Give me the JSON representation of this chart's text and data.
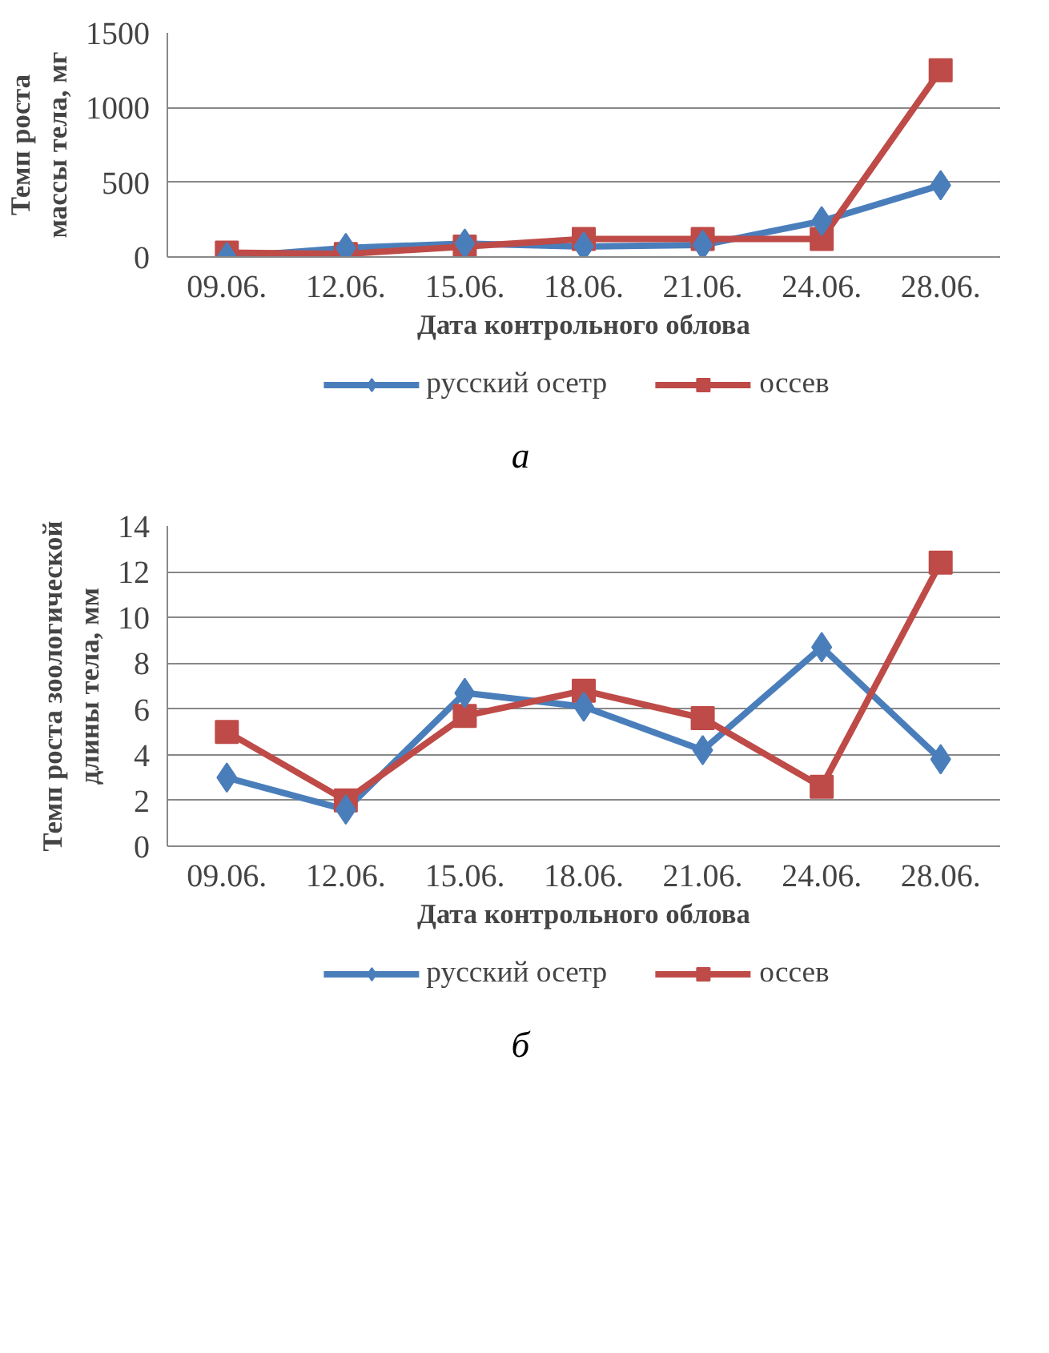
{
  "chart_data": [
    {
      "type": "line",
      "categories": [
        "09.06.",
        "12.06.",
        "15.06.",
        "18.06.",
        "21.06.",
        "24.06.",
        "28.06."
      ],
      "xlabel": "Дата контрольного облова",
      "ylabel": "Темп роста массы тела, мг",
      "ylim": [
        0,
        1500
      ],
      "yticks": [
        0,
        500,
        1000,
        1500
      ],
      "grid": "y",
      "legend": "bottom",
      "annotations": [
        "а"
      ],
      "series": [
        {
          "name": "русский осетр",
          "color": "#4a7ebb",
          "marker": "diamond",
          "values": [
            0,
            60,
            90,
            70,
            80,
            240,
            480
          ]
        },
        {
          "name": "оссев",
          "color": "#be4b48",
          "marker": "square",
          "values": [
            30,
            20,
            70,
            120,
            120,
            120,
            1250
          ]
        }
      ]
    },
    {
      "type": "line",
      "categories": [
        "09.06.",
        "12.06.",
        "15.06.",
        "18.06.",
        "21.06.",
        "24.06.",
        "28.06."
      ],
      "xlabel": "Дата контрольного облова",
      "ylabel": "Темп роста зоологической длины тела, мм",
      "ylim": [
        0,
        14
      ],
      "yticks": [
        0,
        2,
        4,
        6,
        8,
        10,
        12,
        14
      ],
      "grid": "y",
      "legend": "bottom",
      "annotations": [
        "б"
      ],
      "series": [
        {
          "name": "русский осетр",
          "color": "#4a7ebb",
          "marker": "diamond",
          "values": [
            3.0,
            1.6,
            6.7,
            6.1,
            4.2,
            8.7,
            3.8
          ]
        },
        {
          "name": "оссев",
          "color": "#be4b48",
          "marker": "square",
          "values": [
            5.0,
            2.0,
            5.7,
            6.8,
            5.6,
            2.6,
            12.4
          ]
        }
      ]
    }
  ]
}
